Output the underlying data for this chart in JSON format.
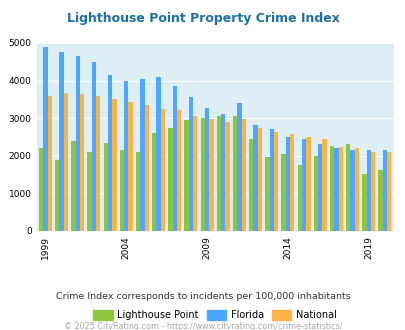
{
  "title": "Lighthouse Point Property Crime Index",
  "years": [
    1999,
    2000,
    2001,
    2002,
    2003,
    2004,
    2005,
    2006,
    2007,
    2008,
    2009,
    2010,
    2011,
    2012,
    2013,
    2014,
    2015,
    2016,
    2017,
    2018,
    2019,
    2020
  ],
  "lp_vals": [
    2200,
    1900,
    2400,
    2100,
    2350,
    2150,
    2100,
    2600,
    2750,
    2950,
    3000,
    3050,
    3050,
    2450,
    1980,
    2050,
    1750,
    2000,
    2250,
    2320,
    1520,
    1620
  ],
  "fl_vals": [
    4900,
    4750,
    4650,
    4500,
    4150,
    4000,
    4050,
    4100,
    3850,
    3550,
    3280,
    3100,
    3400,
    2820,
    2720,
    2500,
    2450,
    2300,
    2200,
    2150,
    2150,
    2150
  ],
  "nat_vals": [
    3600,
    3680,
    3630,
    3600,
    3500,
    3430,
    3350,
    3250,
    3220,
    3050,
    2980,
    2900,
    2970,
    2750,
    2640,
    2580,
    2490,
    2450,
    2230,
    2200,
    2110,
    2110
  ],
  "color_lp": "#8dc63f",
  "color_fl": "#4da6ff",
  "color_nat": "#ffb347",
  "bg_color": "#ddeef5",
  "ylim": [
    0,
    5000
  ],
  "yticks": [
    0,
    1000,
    2000,
    3000,
    4000,
    5000
  ],
  "xtick_years": [
    1999,
    2004,
    2009,
    2014,
    2019
  ],
  "legend_labels": [
    "Lighthouse Point",
    "Florida",
    "National"
  ],
  "subtitle": "Crime Index corresponds to incidents per 100,000 inhabitants",
  "footer": "© 2025 CityRating.com - https://www.cityrating.com/crime-statistics/",
  "title_color": "#1a6fa8",
  "subtitle_color": "#333333",
  "footer_color": "#aaaaaa"
}
